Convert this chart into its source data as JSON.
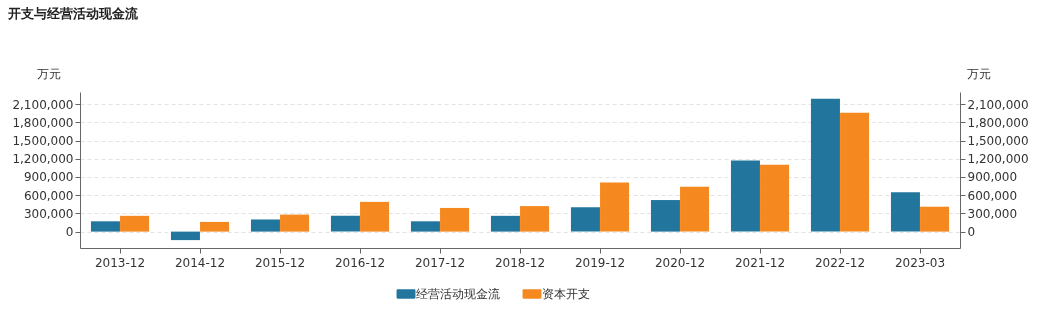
{
  "chart_data": {
    "type": "bar",
    "title": "开支与经营活动现金流",
    "categories": [
      "2013-12",
      "2014-12",
      "2015-12",
      "2016-12",
      "2017-12",
      "2018-12",
      "2019-12",
      "2020-12",
      "2021-12",
      "2022-12",
      "2023-03"
    ],
    "series": [
      {
        "name": "经营活动现金流",
        "color": "#22769d",
        "values": [
          170000,
          -140000,
          200000,
          260000,
          170000,
          260000,
          400000,
          520000,
          1170000,
          2190000,
          650000
        ]
      },
      {
        "name": "资本开支",
        "color": "#f5881f",
        "values": [
          260000,
          160000,
          280000,
          490000,
          390000,
          420000,
          810000,
          740000,
          1100000,
          1960000,
          410000
        ]
      }
    ],
    "ylabel": "万元",
    "y2label": "万元",
    "ylim": [
      -270000,
      2300000
    ],
    "yticks": [
      0,
      {
        "value": 300000,
        "label": "300,000"
      },
      {
        "value": 600000,
        "label": "600,000"
      },
      {
        "value": 900000,
        "label": "900,000"
      },
      {
        "value": 1200000,
        "label": "1,200,000"
      },
      {
        "value": 1500000,
        "label": "1,500,000"
      },
      {
        "value": 1800000,
        "label": "1,800,000"
      },
      {
        "value": 2100000,
        "label": "2,100,000"
      }
    ],
    "y2lim": [
      -270000,
      2300000
    ],
    "y2ticks": [
      0,
      {
        "value": 300000,
        "label": "300,000"
      },
      {
        "value": 600000,
        "label": "600,000"
      },
      {
        "value": 900000,
        "label": "900,000"
      },
      {
        "value": 1200000,
        "label": "1,200,000"
      },
      {
        "value": 1500000,
        "label": "1,500,000"
      },
      {
        "value": 1800000,
        "label": "1,800,000"
      },
      {
        "value": 2100000,
        "label": "2,100,000"
      }
    ],
    "grid": "y",
    "legend": "bottom"
  }
}
